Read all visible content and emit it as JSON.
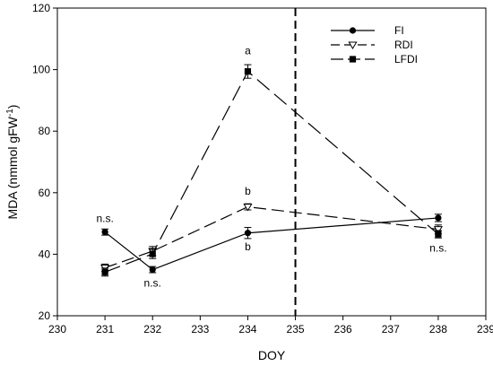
{
  "chart_data": {
    "type": "line",
    "xlabel": "DOY",
    "ylabel_main": "MDA (nmmol gFW",
    "ylabel_sup": "-1",
    "ylabel_close": ")",
    "xlim": [
      230,
      239
    ],
    "ylim": [
      20,
      120
    ],
    "xticks": [
      230,
      231,
      232,
      233,
      234,
      235,
      236,
      237,
      238,
      239
    ],
    "yticks": [
      20,
      40,
      60,
      80,
      100,
      120
    ],
    "grid": false,
    "legend_position": "top-right",
    "vertical_line_x": 235,
    "series": [
      {
        "name": "FI",
        "marker": "circle",
        "dash": "solid",
        "x": [
          231,
          232,
          234,
          238
        ],
        "y": [
          47.2,
          35.0,
          46.9,
          51.8
        ],
        "err": [
          1.0,
          1.0,
          1.8,
          1.2
        ]
      },
      {
        "name": "RDI",
        "marker": "triangle-down",
        "dash": "medium",
        "x": [
          231,
          232,
          234,
          238
        ],
        "y": [
          35.6,
          41.0,
          55.4,
          48.1
        ],
        "err": [
          1.2,
          1.5,
          1.0,
          1.4
        ]
      },
      {
        "name": "LFDI",
        "marker": "square",
        "dash": "long",
        "x": [
          231,
          232,
          234,
          238
        ],
        "y": [
          34.2,
          40.1,
          99.4,
          46.5
        ],
        "err": [
          1.3,
          1.5,
          2.2,
          1.2
        ]
      }
    ],
    "annotations": [
      {
        "text": "n.s.",
        "x": 231,
        "y": 50.5
      },
      {
        "text": "n.s.",
        "x": 232,
        "y": 29.5
      },
      {
        "text": "a",
        "x": 234,
        "y": 105
      },
      {
        "text": "b",
        "x": 234,
        "y": 59.3
      },
      {
        "text": "b",
        "x": 234,
        "y": 41.3
      },
      {
        "text": "n.s.",
        "x": 238,
        "y": 40.8
      }
    ]
  }
}
